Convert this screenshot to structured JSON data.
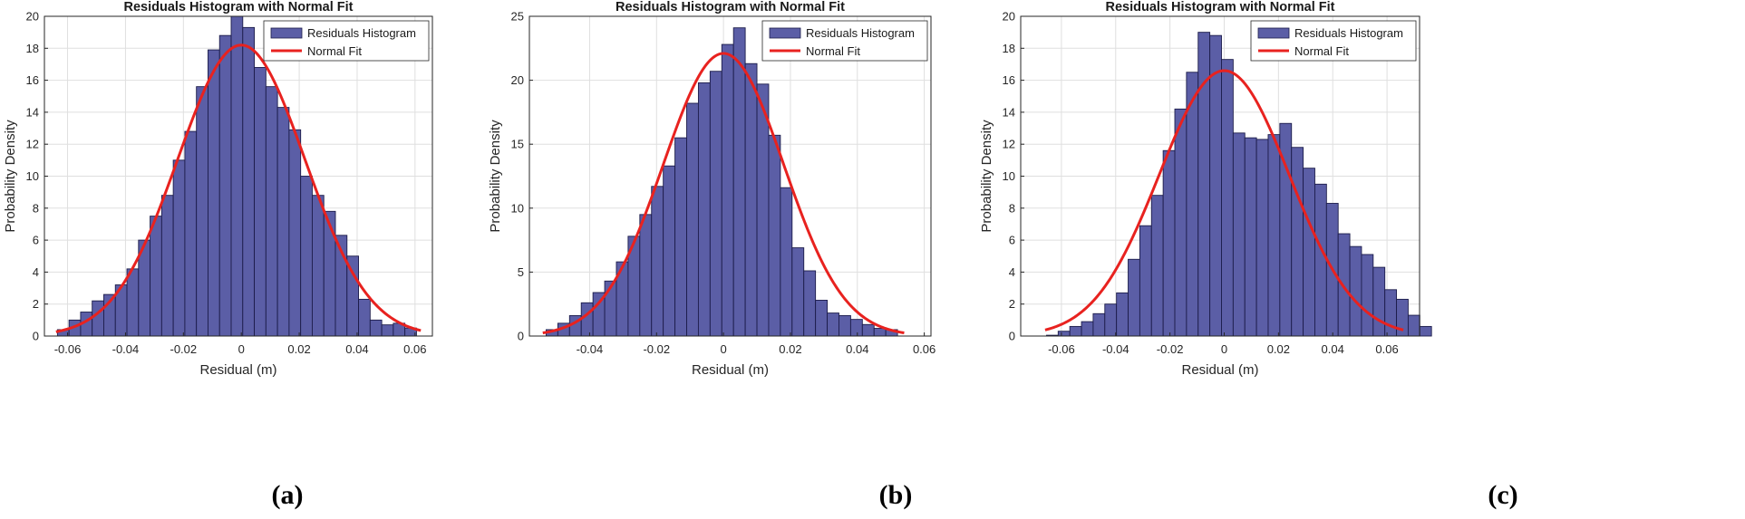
{
  "figure": {
    "captions": [
      "(a)",
      "(b)",
      "(c)"
    ]
  },
  "chart_data": [
    {
      "type": "bar",
      "subtype": "histogram-with-normal-fit",
      "panel": "a",
      "title": "Residuals Histogram with Normal Fit",
      "xlabel": "Residual (m)",
      "ylabel": "Probability Density",
      "xlim": [
        -0.068,
        0.066
      ],
      "ylim": [
        0,
        20
      ],
      "xticks": [
        -0.06,
        -0.04,
        -0.02,
        0,
        0.02,
        0.04,
        0.06
      ],
      "xtick_labels": [
        "-0.06",
        "-0.04",
        "-0.02",
        "0",
        "0.02",
        "0.04",
        "0.06"
      ],
      "yticks": [
        0,
        2,
        4,
        6,
        8,
        10,
        12,
        14,
        16,
        18,
        20
      ],
      "ytick_labels": [
        "0",
        "2",
        "4",
        "6",
        "8",
        "10",
        "12",
        "14",
        "16",
        "18",
        "20"
      ],
      "grid": true,
      "legend_position": "top-right",
      "legend": [
        "Residuals Histogram",
        "Normal Fit"
      ],
      "colors": {
        "bar_fill": "#5b5ea6",
        "bar_edge": "#1c1c4a",
        "fit_line": "#e8221f"
      },
      "bin_start": -0.0635,
      "bin_width": 0.004,
      "values": [
        0.4,
        1.0,
        1.5,
        2.2,
        2.6,
        3.2,
        4.2,
        6.0,
        7.5,
        8.8,
        11.0,
        12.8,
        15.6,
        17.9,
        18.8,
        20.0,
        19.3,
        16.8,
        15.6,
        14.3,
        12.9,
        10.0,
        8.8,
        7.8,
        6.3,
        5.0,
        2.3,
        1.0,
        0.7,
        0.8,
        0.5
      ],
      "fit": {
        "mean": 0.0,
        "std": 0.022,
        "peak": 18.2,
        "x_range": [
          -0.064,
          0.062
        ]
      }
    },
    {
      "type": "bar",
      "subtype": "histogram-with-normal-fit",
      "panel": "b",
      "title": "Residuals Histogram with Normal Fit",
      "xlabel": "Residual (m)",
      "ylabel": "Probability Density",
      "xlim": [
        -0.058,
        0.062
      ],
      "ylim": [
        0,
        25
      ],
      "xticks": [
        -0.04,
        -0.02,
        0,
        0.02,
        0.04,
        0.06
      ],
      "xtick_labels": [
        "-0.04",
        "-0.02",
        "0",
        "0.02",
        "0.04",
        "0.06"
      ],
      "yticks": [
        0,
        5,
        10,
        15,
        20,
        25
      ],
      "ytick_labels": [
        "0",
        "5",
        "10",
        "15",
        "20",
        "25"
      ],
      "grid": true,
      "legend_position": "top-right",
      "legend": [
        "Residuals Histogram",
        "Normal Fit"
      ],
      "colors": {
        "bar_fill": "#5b5ea6",
        "bar_edge": "#1c1c4a",
        "fit_line": "#e8221f"
      },
      "bin_start": -0.053,
      "bin_width": 0.0035,
      "values": [
        0.5,
        1.0,
        1.6,
        2.6,
        3.4,
        4.3,
        5.8,
        7.8,
        9.5,
        11.7,
        13.3,
        15.5,
        18.2,
        19.8,
        20.7,
        22.8,
        24.1,
        21.3,
        19.7,
        15.7,
        11.6,
        6.9,
        5.1,
        2.8,
        1.8,
        1.6,
        1.3,
        0.9,
        0.6,
        0.5
      ],
      "fit": {
        "mean": 0.0,
        "std": 0.018,
        "peak": 22.1,
        "x_range": [
          -0.054,
          0.054
        ]
      }
    },
    {
      "type": "bar",
      "subtype": "histogram-with-normal-fit",
      "panel": "c",
      "title": "Residuals Histogram with Normal Fit",
      "xlabel": "Residual (m)",
      "ylabel": "Probability Density",
      "xlim": [
        -0.075,
        0.072
      ],
      "ylim": [
        0,
        20
      ],
      "xticks": [
        -0.06,
        -0.04,
        -0.02,
        0,
        0.02,
        0.04,
        0.06
      ],
      "xtick_labels": [
        "-0.06",
        "-0.04",
        "-0.02",
        "0",
        "0.02",
        "0.04",
        "0.06"
      ],
      "yticks": [
        0,
        2,
        4,
        6,
        8,
        10,
        12,
        14,
        16,
        18,
        20
      ],
      "ytick_labels": [
        "0",
        "2",
        "4",
        "6",
        "8",
        "10",
        "12",
        "14",
        "16",
        "18",
        "20"
      ],
      "grid": true,
      "legend_position": "top-right",
      "legend": [
        "Residuals Histogram",
        "Normal Fit"
      ],
      "colors": {
        "bar_fill": "#5b5ea6",
        "bar_edge": "#1c1c4a",
        "fit_line": "#e8221f"
      },
      "bin_start": -0.0655,
      "bin_width": 0.0043,
      "values": [
        0.05,
        0.3,
        0.6,
        0.9,
        1.4,
        2.0,
        2.7,
        4.8,
        6.9,
        8.8,
        11.6,
        14.2,
        16.5,
        19.0,
        18.8,
        17.3,
        12.7,
        12.4,
        12.3,
        12.6,
        13.3,
        11.8,
        10.5,
        9.5,
        8.3,
        6.4,
        5.6,
        5.1,
        4.3,
        2.9,
        2.3,
        1.3,
        0.6
      ],
      "fit": {
        "mean": 0.0,
        "std": 0.024,
        "peak": 16.6,
        "x_range": [
          -0.066,
          0.066
        ]
      }
    }
  ]
}
